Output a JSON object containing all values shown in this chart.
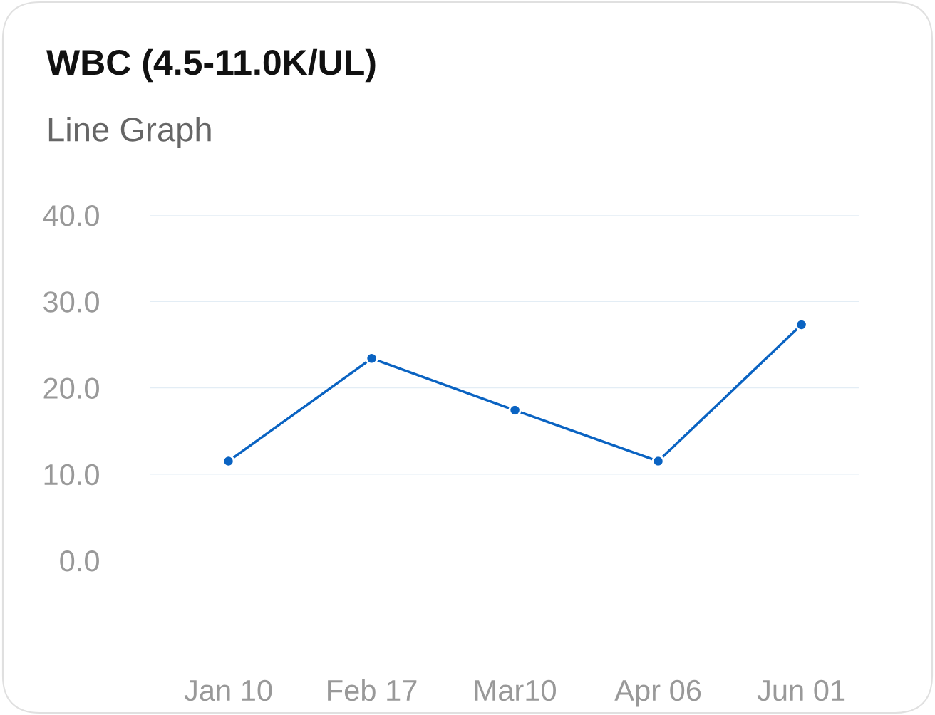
{
  "chart_data": {
    "type": "line",
    "title": "WBC (4.5-11.0K/UL)",
    "subtitle": "Line Graph",
    "categories": [
      "Jan 10",
      "Feb 17",
      "Mar10",
      "Apr 06",
      "Jun 01"
    ],
    "series": [
      {
        "color": "#0a63c2",
        "values": [
          11.5,
          23.4,
          17.4,
          11.5,
          27.3
        ]
      }
    ],
    "ylim": [
      0,
      40
    ],
    "yticks": [
      {
        "value": 0,
        "label": "0.0"
      },
      {
        "value": 10,
        "label": "10.0"
      },
      {
        "value": 20,
        "label": "20.0"
      },
      {
        "value": 30,
        "label": "30.0"
      },
      {
        "value": 40,
        "label": "40.0"
      }
    ],
    "grid": "y",
    "marker": "circle",
    "line_style": "solid",
    "legend": false
  }
}
